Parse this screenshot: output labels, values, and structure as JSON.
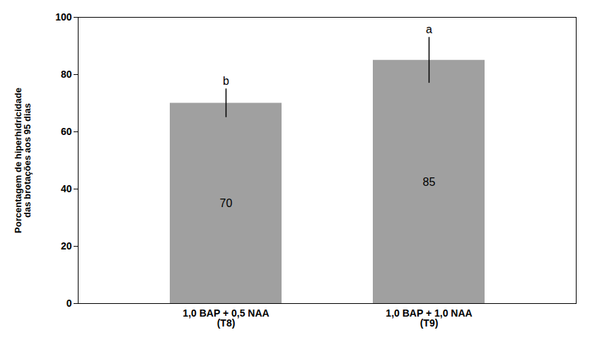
{
  "chart_data": {
    "type": "bar",
    "categories": [
      "1,0 BAP + 0,5 NAA\n(T8)",
      "1,0 BAP + 1,0 NAA\n(T9)"
    ],
    "values": [
      70,
      85
    ],
    "errors": [
      5,
      8
    ],
    "significance_labels": [
      "b",
      "a"
    ],
    "color": "#a0a0a0",
    "ylabel": "Porcentagem de hiperhidricidade\ndas brotações aos 95 dias",
    "ylim": [
      0,
      100
    ],
    "yticks": [
      0,
      20,
      40,
      60,
      80,
      100
    ],
    "data_labels": true,
    "grid": false
  }
}
